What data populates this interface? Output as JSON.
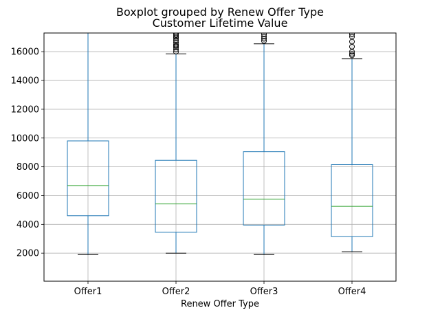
{
  "chart_data": {
    "type": "box",
    "suptitle": "Boxplot grouped by Renew Offer Type",
    "title": "Customer Lifetime Value",
    "xlabel": "Renew Offer Type",
    "ylabel": "",
    "categories": [
      "Offer1",
      "Offer2",
      "Offer3",
      "Offer4"
    ],
    "ylim": [
      50,
      17300
    ],
    "yticks": [
      2000,
      4000,
      6000,
      8000,
      10000,
      12000,
      14000,
      16000
    ],
    "grid": true,
    "boxes": [
      {
        "category": "Offer1",
        "whisker_low": 1900,
        "q1": 4600,
        "median": 6700,
        "q3": 9800,
        "whisker_high": 17300,
        "outliers": []
      },
      {
        "category": "Offer2",
        "whisker_low": 2000,
        "q1": 3450,
        "median": 5420,
        "q3": 8450,
        "whisker_high": 15850,
        "outliers": [
          16000,
          16150,
          16300,
          16400,
          16500,
          16650,
          16800,
          16950,
          17050,
          17150,
          17250
        ]
      },
      {
        "category": "Offer3",
        "whisker_low": 1900,
        "q1": 3950,
        "median": 5750,
        "q3": 9050,
        "whisker_high": 16550,
        "outliers": [
          16750,
          16900,
          17050,
          17200
        ]
      },
      {
        "category": "Offer4",
        "whisker_low": 2100,
        "q1": 3150,
        "median": 5250,
        "q3": 8150,
        "whisker_high": 15500,
        "outliers": [
          15750,
          15850,
          16000,
          16350,
          16700,
          17050,
          17200
        ]
      }
    ],
    "colors": {
      "box": "#1f77b4",
      "median": "#2ca02c",
      "whisker_cap": "#000000",
      "grid": "#b0b0b0"
    }
  }
}
